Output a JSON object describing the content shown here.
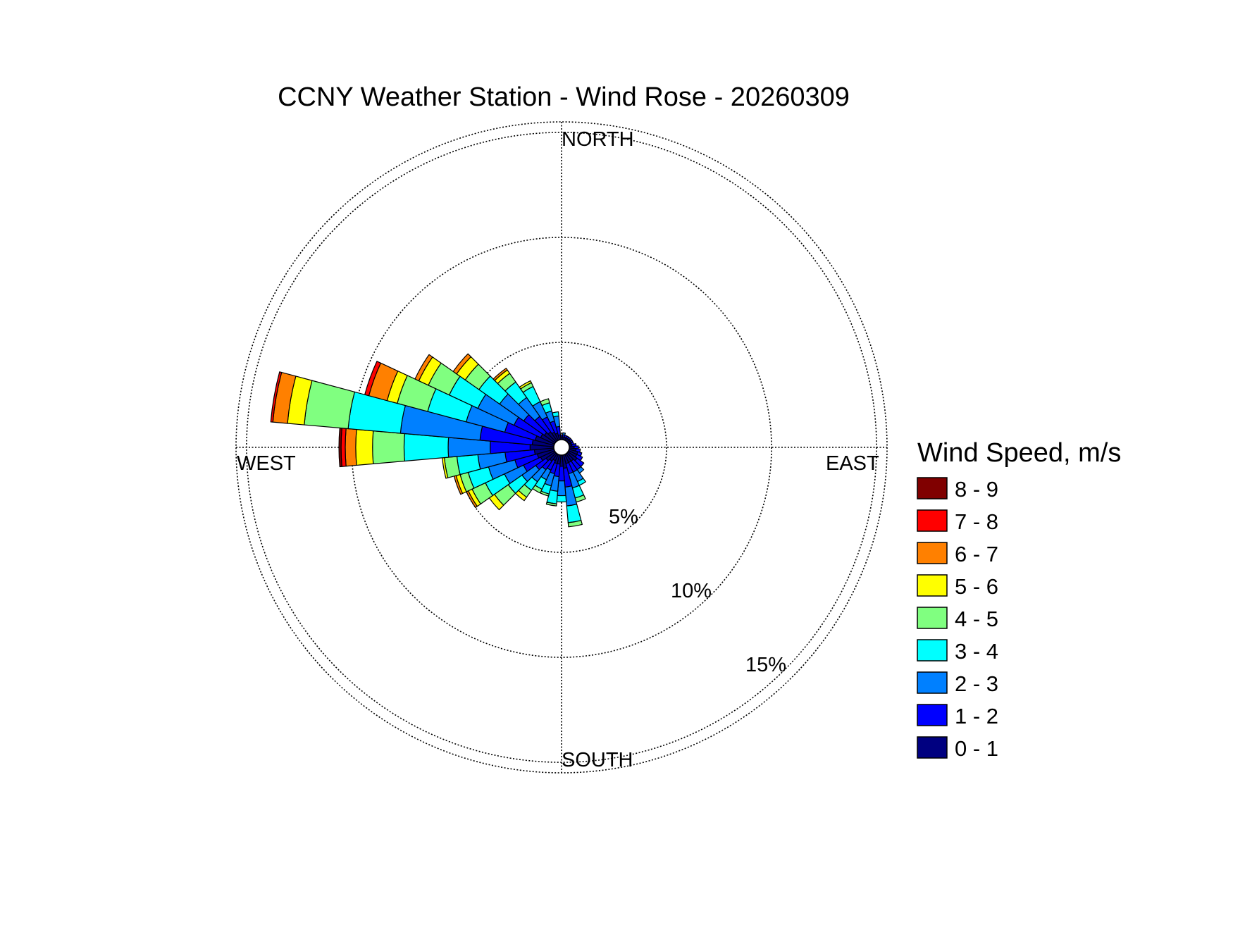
{
  "chart_data": {
    "type": "wind-rose",
    "title": "CCNY Weather Station - Wind Rose - 20260309",
    "directions": [
      "NORTH",
      "EAST",
      "SOUTH",
      "WEST"
    ],
    "radial_axis": {
      "unit": "percent frequency",
      "max": 15.5,
      "rings": [
        {
          "value": 5,
          "label": "5%"
        },
        {
          "value": 10,
          "label": "10%"
        },
        {
          "value": 15,
          "label": "15%"
        }
      ]
    },
    "legend": {
      "title": "Wind Speed, m/s",
      "placement": "right",
      "bins": [
        {
          "label": "8 - 9",
          "color": "#800000"
        },
        {
          "label": "7 - 8",
          "color": "#ff0000"
        },
        {
          "label": "6 - 7",
          "color": "#ff8000"
        },
        {
          "label": "5 - 6",
          "color": "#ffff00"
        },
        {
          "label": "4 - 5",
          "color": "#80ff80"
        },
        {
          "label": "3 - 4",
          "color": "#00ffff"
        },
        {
          "label": "2 - 3",
          "color": "#0080ff"
        },
        {
          "label": "1 - 2",
          "color": "#0000ff"
        },
        {
          "label": "0 - 1",
          "color": "#000080"
        }
      ]
    },
    "sector_width_deg": 10,
    "series_note": "cumulative % per direction sector, ordered 0-1 ... 8-9 m/s",
    "sectors": [
      {
        "dir": 0,
        "cum": [
          0.5,
          0.6
        ]
      },
      {
        "dir": 10,
        "cum": [
          0.5,
          0.6,
          0.7
        ]
      },
      {
        "dir": 20,
        "cum": [
          0.5,
          0.6
        ]
      },
      {
        "dir": 30,
        "cum": [
          0.5,
          0.6
        ]
      },
      {
        "dir": 40,
        "cum": [
          0.5,
          0.6
        ]
      },
      {
        "dir": 50,
        "cum": [
          0.5,
          0.6
        ]
      },
      {
        "dir": 60,
        "cum": [
          0.5,
          0.6
        ]
      },
      {
        "dir": 70,
        "cum": [
          0.5,
          0.6
        ]
      },
      {
        "dir": 80,
        "cum": [
          0.5,
          0.7
        ]
      },
      {
        "dir": 90,
        "cum": [
          0.6,
          0.8
        ]
      },
      {
        "dir": 100,
        "cum": [
          0.7,
          0.9
        ]
      },
      {
        "dir": 110,
        "cum": [
          0.8,
          1.0
        ]
      },
      {
        "dir": 120,
        "cum": [
          0.8,
          1.1
        ]
      },
      {
        "dir": 130,
        "cum": [
          0.9,
          1.3
        ]
      },
      {
        "dir": 140,
        "cum": [
          0.8,
          1.3,
          1.5
        ]
      },
      {
        "dir": 150,
        "cum": [
          0.8,
          1.3,
          1.8,
          2.0
        ]
      },
      {
        "dir": 160,
        "cum": [
          0.8,
          1.3,
          2.0,
          2.5,
          2.7
        ]
      },
      {
        "dir": 170,
        "cum": [
          1.0,
          1.9,
          2.8,
          3.6,
          3.8
        ]
      },
      {
        "dir": 180,
        "cum": [
          0.9,
          1.6,
          2.3,
          2.6
        ]
      },
      {
        "dir": 190,
        "cum": [
          0.8,
          1.4,
          2.1,
          2.7,
          2.8
        ]
      },
      {
        "dir": 200,
        "cum": [
          0.8,
          1.3,
          1.9,
          2.3,
          2.4
        ]
      },
      {
        "dir": 210,
        "cum": [
          0.7,
          1.2,
          1.7,
          2.2,
          2.4
        ]
      },
      {
        "dir": 220,
        "cum": [
          0.8,
          1.3,
          2.0,
          2.5,
          2.9,
          3.1
        ]
      },
      {
        "dir": 230,
        "cum": [
          0.9,
          1.5,
          2.3,
          3.1,
          3.9,
          4.2
        ]
      },
      {
        "dir": 240,
        "cum": [
          1.1,
          2.0,
          3.0,
          4.0,
          4.7,
          4.9,
          5.0
        ]
      },
      {
        "dir": 250,
        "cum": [
          1.2,
          2.3,
          3.6,
          4.6,
          5.0,
          5.2,
          5.3
        ]
      },
      {
        "dir": 260,
        "cum": [
          1.3,
          2.7,
          4.0,
          5.0,
          5.6,
          5.7
        ]
      },
      {
        "dir": 270,
        "cum": [
          1.5,
          3.4,
          5.4,
          7.5,
          9.0,
          9.8,
          10.3,
          10.5,
          10.6
        ]
      },
      {
        "dir": 280,
        "cum": [
          1.4,
          3.9,
          7.7,
          10.2,
          12.3,
          13.1,
          13.8,
          13.9
        ]
      },
      {
        "dir": 290,
        "cum": [
          1.3,
          2.8,
          4.7,
          6.6,
          8.1,
          8.6,
          9.5,
          9.7
        ]
      },
      {
        "dir": 300,
        "cum": [
          1.1,
          2.5,
          4.4,
          5.9,
          7.0,
          7.5,
          7.7
        ]
      },
      {
        "dir": 310,
        "cum": [
          1.0,
          2.2,
          3.6,
          4.8,
          5.6,
          6.1,
          6.3
        ]
      },
      {
        "dir": 320,
        "cum": [
          0.9,
          1.8,
          2.9,
          3.8,
          4.3,
          4.5,
          4.6
        ]
      },
      {
        "dir": 330,
        "cum": [
          0.8,
          1.6,
          2.4,
          3.2,
          3.4,
          3.5
        ]
      },
      {
        "dir": 340,
        "cum": [
          0.7,
          1.3,
          1.8,
          2.2,
          2.4
        ]
      },
      {
        "dir": 350,
        "cum": [
          0.6,
          1.0,
          1.5,
          1.7
        ]
      }
    ]
  }
}
